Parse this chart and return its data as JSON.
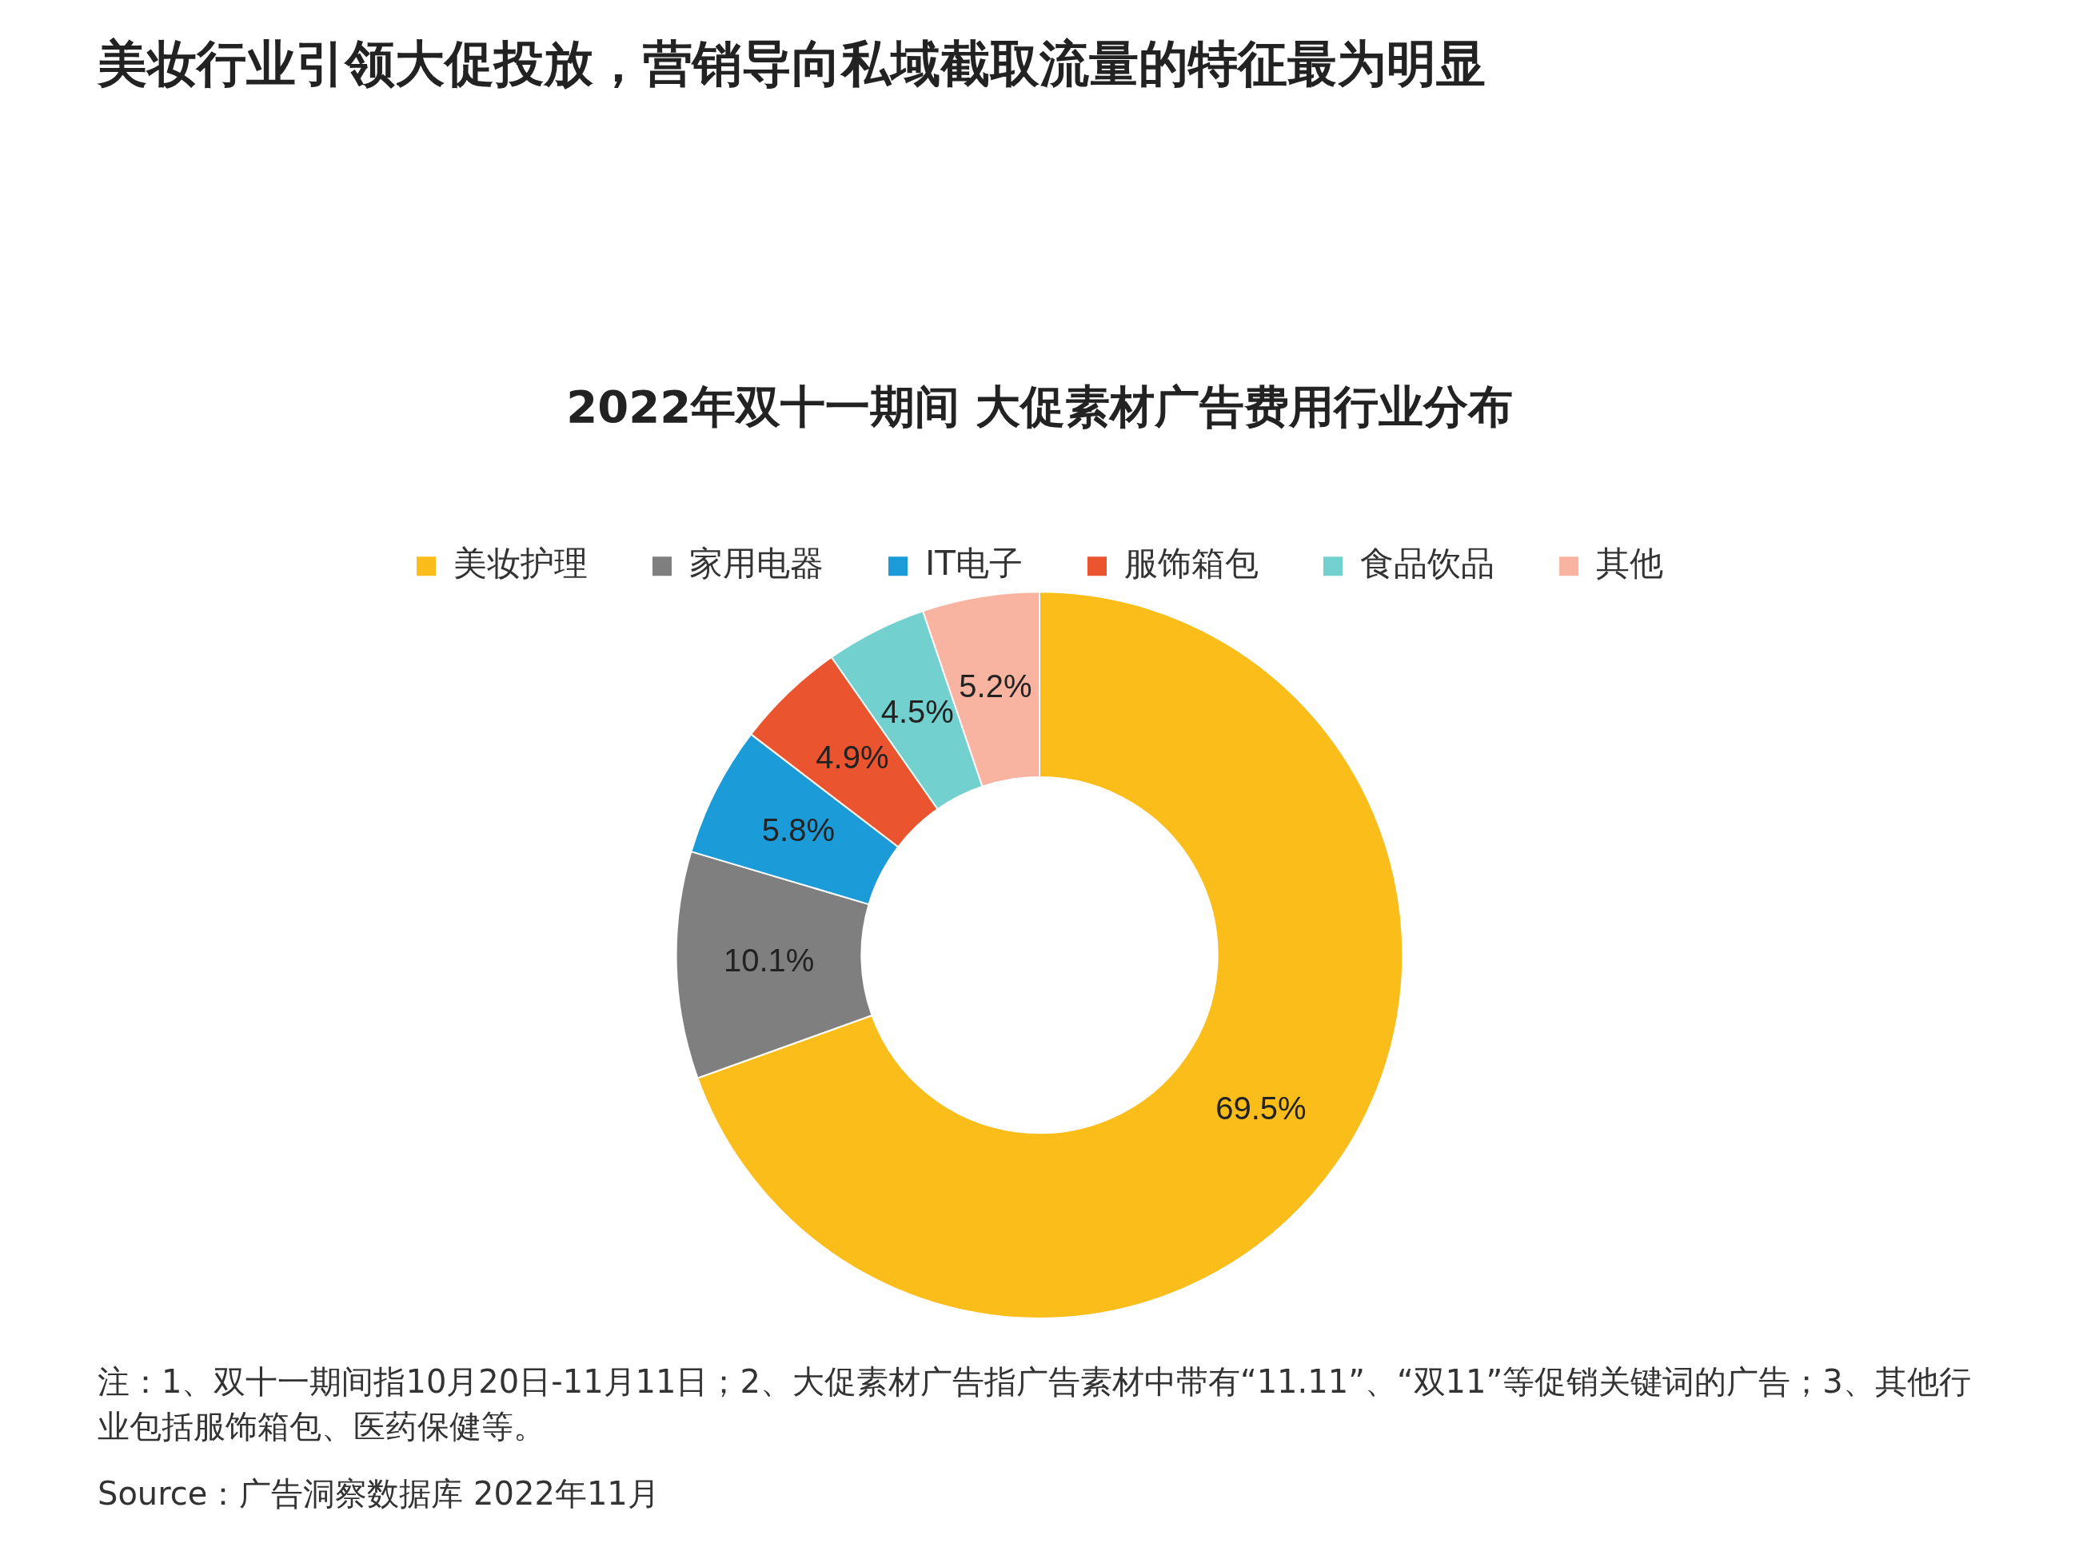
{
  "chart_data": {
    "type": "donut",
    "title": "美妆行业引领大促投放，营销导向私域截取流量的特征最为明显",
    "subtitle": "2022年双十一期间 大促素材广告费用行业分布",
    "categories": [
      "美妆护理",
      "家用电器",
      "IT电子",
      "服饰箱包",
      "食品饮品",
      "其他"
    ],
    "values": [
      69.5,
      10.1,
      5.8,
      4.9,
      4.5,
      5.2
    ],
    "value_labels": [
      "69.5%",
      "10.1%",
      "5.8%",
      "4.9%",
      "4.5%",
      "5.2%"
    ],
    "colors": [
      "#fbbd19",
      "#7f7f7f",
      "#1b9bd7",
      "#ea5530",
      "#72d0cf",
      "#f8b4a0"
    ],
    "legend": "top",
    "annotations": [
      "注：1、双十一期间指10月20日-11月11日；2、大促素材广告指广告素材中带有“11.11”、“双11”等促销关键词的广告；3、其他行业包括服饰箱包、医药保健等。",
      "Source：广告洞察数据库 2022年11月"
    ]
  }
}
